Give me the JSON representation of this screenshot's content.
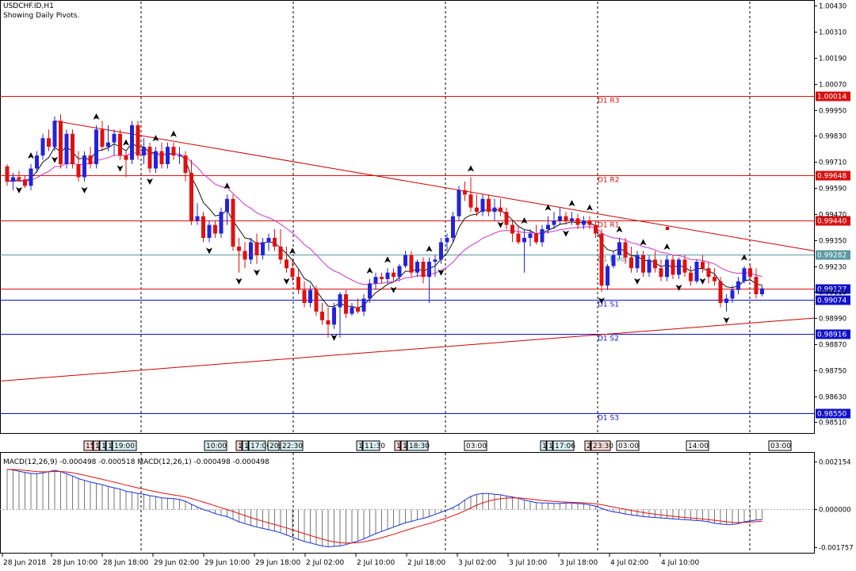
{
  "header": {
    "symbol": "USDCHF.ID,H1",
    "note": "Showing Daily Pivots."
  },
  "colors": {
    "bull": "#2323d9",
    "bear": "#e01010",
    "ema_fast": "#101010",
    "ema_slow": "#cc33cc",
    "pivot_red": "#d81010",
    "pivot_blue": "#1010cc",
    "pivot_teal": "#5a9aa0",
    "trendline": "#cc0000",
    "macd_line": "#1830d8",
    "signal_line": "#e01010",
    "grid": "#000000",
    "marker_red": "#ffdddd",
    "marker_blue": "#ddf2f4"
  },
  "chart_data": [
    {
      "type": "candlestick",
      "title": "USDCHF.ID,H1",
      "subtitle": "Showing Daily Pivots.",
      "ylim": [
        0.9846,
        1.0045
      ],
      "y_ticks": [
        "1.00430",
        "1.00310",
        "1.00190",
        "1.00070",
        "0.99950",
        "0.99830",
        "0.99710",
        "0.99590",
        "0.99470",
        "0.99350",
        "0.99230",
        "0.99110",
        "0.98990",
        "0.98870",
        "0.98750",
        "0.98630",
        "0.98510"
      ],
      "x_labels": [
        "28 Jun 2018",
        "28 Jun 10:00",
        "28 Jun 18:00",
        "29 Jun 02:00",
        "29 Jun 10:00",
        "29 Jun 18:00",
        "2 Jul 02:00",
        "2 Jul 10:00",
        "2 Jul 18:00",
        "3 Jul 02:00",
        "3 Jul 10:00",
        "3 Jul 18:00",
        "4 Jul 02:00",
        "4 Jul 10:00"
      ],
      "session_separators_date": [
        "28 Jun 20:00",
        "29 Jun 20:00",
        "2 Jul 20:00",
        "3 Jul 20:00",
        "4 Jul 20:00"
      ],
      "pivots": [
        {
          "label": "D1 R3",
          "value": 1.00014,
          "price_label": "1.00014",
          "color": "pivot_red"
        },
        {
          "label": "D1 R2",
          "value": 0.99648,
          "price_label": "0.99648",
          "color": "pivot_red"
        },
        {
          "label": "D1 R1",
          "value": 0.9944,
          "price_label": "0.99440",
          "color": "pivot_red"
        },
        {
          "label": "D1 Pivot",
          "value": 0.99282,
          "price_label": "0.99282",
          "color": "pivot_teal"
        },
        {
          "label": "D1 S1",
          "value": 0.99074,
          "price_label": "0.99074",
          "color": "pivot_blue"
        },
        {
          "label": "D1 S2",
          "value": 0.98916,
          "price_label": "0.98916",
          "color": "pivot_blue"
        },
        {
          "label": "D1 S3",
          "value": 0.9855,
          "price_label": "0.98550",
          "color": "pivot_blue"
        }
      ],
      "current_price": {
        "value": 0.99127,
        "label": "0.99127"
      },
      "trendlines": [
        {
          "name": "resistance",
          "from": {
            "bar": 8,
            "price": 0.999
          },
          "to": {
            "bar": 144,
            "price": 0.993
          }
        },
        {
          "name": "support",
          "from": {
            "bar": -1,
            "price": 0.987
          },
          "to": {
            "bar": 144,
            "price": 0.9899
          }
        }
      ],
      "time_markers": [
        {
          "label": "15:",
          "style": "red"
        },
        {
          "label": "1",
          "style": "red"
        },
        {
          "label": "1",
          "style": "blue"
        },
        {
          "label": "1",
          "style": "blue"
        },
        {
          "label": "19:00",
          "style": "blue"
        },
        {
          "label": "10:00",
          "style": "blue"
        },
        {
          "label": "1",
          "style": "red"
        },
        {
          "label": "1",
          "style": "blue"
        },
        {
          "label": "17:00",
          "style": "blue"
        },
        {
          "label": "20:",
          "style": "blue"
        },
        {
          "label": "22:30",
          "style": "blue"
        },
        {
          "label": "1",
          "style": "blue"
        },
        {
          "label": "11:30",
          "style": "blue"
        },
        {
          "label": "1",
          "style": "red"
        },
        {
          "label": "1",
          "style": "red"
        },
        {
          "label": "18:30",
          "style": "blue"
        },
        {
          "label": "03:00",
          "style": "plain"
        },
        {
          "label": "1",
          "style": "blue"
        },
        {
          "label": "1",
          "style": "blue"
        },
        {
          "label": "17:06",
          "style": "blue"
        },
        {
          "label": "2",
          "style": "red"
        },
        {
          "label": "23:30",
          "style": "red"
        },
        {
          "label": "03:00",
          "style": "plain"
        },
        {
          "label": "14:00",
          "style": "plain"
        },
        {
          "label": "03:00",
          "style": "plain"
        }
      ],
      "candles": [
        [
          0.9969,
          0.997,
          0.996,
          0.9962
        ],
        [
          0.9962,
          0.9966,
          0.9958,
          0.9964
        ],
        [
          0.9964,
          0.9967,
          0.9962,
          0.9963
        ],
        [
          0.9963,
          0.9965,
          0.9959,
          0.996
        ],
        [
          0.996,
          0.997,
          0.9958,
          0.9968
        ],
        [
          0.9968,
          0.9976,
          0.9966,
          0.9974
        ],
        [
          0.9974,
          0.9984,
          0.9972,
          0.9982
        ],
        [
          0.9982,
          0.9986,
          0.9976,
          0.9978
        ],
        [
          0.9978,
          0.9992,
          0.9976,
          0.999
        ],
        [
          0.999,
          0.9993,
          0.9968,
          0.997
        ],
        [
          0.997,
          0.9986,
          0.9968,
          0.9984
        ],
        [
          0.9984,
          0.9986,
          0.9968,
          0.997
        ],
        [
          0.997,
          0.9976,
          0.9962,
          0.9964
        ],
        [
          0.9964,
          0.9976,
          0.9962,
          0.9974
        ],
        [
          0.9974,
          0.9978,
          0.9968,
          0.997
        ],
        [
          0.997,
          0.9988,
          0.9968,
          0.9986
        ],
        [
          0.9986,
          0.999,
          0.9976,
          0.9978
        ],
        [
          0.9978,
          0.9988,
          0.9976,
          0.998
        ],
        [
          0.998,
          0.9986,
          0.9974,
          0.9984
        ],
        [
          0.9984,
          0.9986,
          0.9972,
          0.9974
        ],
        [
          0.9974,
          0.9976,
          0.9964,
          0.9972
        ],
        [
          0.9972,
          0.999,
          0.997,
          0.9988
        ],
        [
          0.9988,
          0.999,
          0.9972,
          0.9974
        ],
        [
          0.9974,
          0.9982,
          0.997,
          0.9978
        ],
        [
          0.9978,
          0.998,
          0.9966,
          0.9968
        ],
        [
          0.9968,
          0.9978,
          0.9966,
          0.9976
        ],
        [
          0.9976,
          0.998,
          0.9968,
          0.997
        ],
        [
          0.997,
          0.998,
          0.9968,
          0.9978
        ],
        [
          0.9978,
          0.998,
          0.9972,
          0.9974
        ],
        [
          0.9974,
          0.9978,
          0.997,
          0.9974
        ],
        [
          0.9974,
          0.9976,
          0.9962,
          0.9966
        ],
        [
          0.9966,
          0.9972,
          0.9942,
          0.9944
        ],
        [
          0.9944,
          0.9952,
          0.9942,
          0.9946
        ],
        [
          0.9946,
          0.9948,
          0.9934,
          0.9936
        ],
        [
          0.9936,
          0.9944,
          0.9934,
          0.9942
        ],
        [
          0.9942,
          0.9944,
          0.9936,
          0.9938
        ],
        [
          0.9938,
          0.995,
          0.9936,
          0.9948
        ],
        [
          0.9948,
          0.9956,
          0.9942,
          0.9954
        ],
        [
          0.9954,
          0.9956,
          0.993,
          0.9932
        ],
        [
          0.9932,
          0.9936,
          0.992,
          0.993
        ],
        [
          0.993,
          0.9934,
          0.9922,
          0.9926
        ],
        [
          0.9926,
          0.9936,
          0.9924,
          0.9934
        ],
        [
          0.9934,
          0.9938,
          0.9924,
          0.9928
        ],
        [
          0.9928,
          0.9936,
          0.9926,
          0.9934
        ],
        [
          0.9934,
          0.9938,
          0.993,
          0.9936
        ],
        [
          0.9936,
          0.994,
          0.993,
          0.9932
        ],
        [
          0.9932,
          0.994,
          0.9924,
          0.9926
        ],
        [
          0.9926,
          0.9932,
          0.992,
          0.9922
        ],
        [
          0.9922,
          0.9926,
          0.9916,
          0.9918
        ],
        [
          0.9918,
          0.9922,
          0.991,
          0.9912
        ],
        [
          0.9912,
          0.9916,
          0.9904,
          0.9906
        ],
        [
          0.9906,
          0.9914,
          0.9904,
          0.9912
        ],
        [
          0.9912,
          0.9914,
          0.99,
          0.9902
        ],
        [
          0.9902,
          0.9906,
          0.9896,
          0.9898
        ],
        [
          0.9898,
          0.9904,
          0.989,
          0.9896
        ],
        [
          0.9896,
          0.9906,
          0.9894,
          0.9904
        ],
        [
          0.9904,
          0.9911,
          0.989,
          0.991
        ],
        [
          0.991,
          0.9912,
          0.9899,
          0.9901
        ],
        [
          0.9901,
          0.9906,
          0.99,
          0.9904
        ],
        [
          0.9904,
          0.9908,
          0.9901,
          0.9902
        ],
        [
          0.9902,
          0.991,
          0.99,
          0.9908
        ],
        [
          0.9908,
          0.9917,
          0.9906,
          0.9915
        ],
        [
          0.9915,
          0.992,
          0.9912,
          0.9918
        ],
        [
          0.9918,
          0.992,
          0.9915,
          0.9917
        ],
        [
          0.9917,
          0.9922,
          0.9915,
          0.992
        ],
        [
          0.992,
          0.9922,
          0.9916,
          0.9918
        ],
        [
          0.9918,
          0.9924,
          0.9916,
          0.9923
        ],
        [
          0.9923,
          0.993,
          0.9922,
          0.9928
        ],
        [
          0.9928,
          0.993,
          0.9918,
          0.992
        ],
        [
          0.992,
          0.9926,
          0.9918,
          0.9925
        ],
        [
          0.9925,
          0.9927,
          0.9915,
          0.9918
        ],
        [
          0.9918,
          0.9927,
          0.9906,
          0.9925
        ],
        [
          0.9925,
          0.9928,
          0.9918,
          0.9926
        ],
        [
          0.9926,
          0.9936,
          0.9924,
          0.9934
        ],
        [
          0.9934,
          0.9938,
          0.993,
          0.9936
        ],
        [
          0.9936,
          0.9948,
          0.9934,
          0.9946
        ],
        [
          0.9946,
          0.996,
          0.9944,
          0.9958
        ],
        [
          0.9958,
          0.9962,
          0.9953,
          0.9956
        ],
        [
          0.9956,
          0.9964,
          0.9948,
          0.995
        ],
        [
          0.995,
          0.9956,
          0.9946,
          0.9948
        ],
        [
          0.9948,
          0.9956,
          0.9946,
          0.9954
        ],
        [
          0.9954,
          0.9956,
          0.9946,
          0.9948
        ],
        [
          0.9948,
          0.9954,
          0.9944,
          0.995
        ],
        [
          0.995,
          0.9954,
          0.9946,
          0.9948
        ],
        [
          0.9948,
          0.995,
          0.994,
          0.9942
        ],
        [
          0.9942,
          0.9944,
          0.9934,
          0.9938
        ],
        [
          0.9938,
          0.9942,
          0.9933,
          0.9934
        ],
        [
          0.9934,
          0.994,
          0.992,
          0.9936
        ],
        [
          0.9936,
          0.994,
          0.9932,
          0.9938
        ],
        [
          0.9938,
          0.9942,
          0.9933,
          0.9934
        ],
        [
          0.9934,
          0.9942,
          0.9932,
          0.994
        ],
        [
          0.994,
          0.9946,
          0.9938,
          0.9942
        ],
        [
          0.9942,
          0.9948,
          0.994,
          0.9944
        ],
        [
          0.9944,
          0.995,
          0.9942,
          0.9946
        ],
        [
          0.9946,
          0.9948,
          0.9942,
          0.9944
        ],
        [
          0.9944,
          0.9948,
          0.9942,
          0.9945
        ],
        [
          0.9945,
          0.9947,
          0.994,
          0.9942
        ],
        [
          0.9942,
          0.9946,
          0.994,
          0.9944
        ],
        [
          0.9944,
          0.9946,
          0.994,
          0.9942
        ],
        [
          0.9942,
          0.9944,
          0.9936,
          0.9938
        ],
        [
          0.9938,
          0.994,
          0.9911,
          0.9914
        ],
        [
          0.9914,
          0.9924,
          0.9912,
          0.9923
        ],
        [
          0.9923,
          0.993,
          0.9922,
          0.9928
        ],
        [
          0.9928,
          0.9936,
          0.9926,
          0.9934
        ],
        [
          0.9934,
          0.9936,
          0.9924,
          0.9927
        ],
        [
          0.9927,
          0.9932,
          0.992,
          0.9922
        ],
        [
          0.9922,
          0.993,
          0.992,
          0.9928
        ],
        [
          0.9928,
          0.993,
          0.9918,
          0.992
        ],
        [
          0.992,
          0.9928,
          0.9918,
          0.9926
        ],
        [
          0.9926,
          0.993,
          0.992,
          0.9922
        ],
        [
          0.9922,
          0.9926,
          0.9916,
          0.9918
        ],
        [
          0.9918,
          0.9928,
          0.9916,
          0.9926
        ],
        [
          0.9926,
          0.9928,
          0.9917,
          0.9919
        ],
        [
          0.9919,
          0.9927,
          0.9917,
          0.9926
        ],
        [
          0.9926,
          0.9928,
          0.9918,
          0.992
        ],
        [
          0.992,
          0.9923,
          0.9914,
          0.9916
        ],
        [
          0.9916,
          0.9926,
          0.9915,
          0.9925
        ],
        [
          0.9925,
          0.9928,
          0.992,
          0.9922
        ],
        [
          0.9922,
          0.9925,
          0.9915,
          0.9918
        ],
        [
          0.9918,
          0.9922,
          0.9914,
          0.9916
        ],
        [
          0.9916,
          0.9918,
          0.9904,
          0.9906
        ],
        [
          0.9906,
          0.991,
          0.9902,
          0.9908
        ],
        [
          0.9908,
          0.9914,
          0.9906,
          0.9912
        ],
        [
          0.9912,
          0.9918,
          0.991,
          0.9916
        ],
        [
          0.9916,
          0.9923,
          0.9915,
          0.9922
        ],
        [
          0.9922,
          0.9924,
          0.9916,
          0.9918
        ],
        [
          0.9918,
          0.9922,
          0.9908,
          0.991
        ],
        [
          0.991,
          0.9914,
          0.9909,
          0.99127
        ]
      ],
      "fractals": {
        "up": [
          4,
          15,
          20,
          25,
          28,
          37,
          48,
          61,
          64,
          71,
          78,
          87,
          91,
          95,
          98,
          103,
          107,
          111,
          124
        ],
        "down": [
          2,
          8,
          13,
          19,
          24,
          34,
          39,
          42,
          47,
          55,
          65,
          73,
          83,
          94,
          100,
          106,
          113,
          117,
          121
        ]
      }
    },
    {
      "type": "macd",
      "title": "MACD(12,26,9) -0.000498 -0.000518 MACD(12,26,1) -0.000498 -0.000498",
      "ylim": [
        -0.00205,
        0.00245
      ],
      "y_ticks": [
        "0.002154",
        "0.000000",
        "-0.001757"
      ],
      "histogram": [
        0.0018,
        0.00178,
        0.00172,
        0.00166,
        0.00162,
        0.0016,
        0.00164,
        0.0017,
        0.00176,
        0.0017,
        0.0016,
        0.0015,
        0.00138,
        0.0013,
        0.00122,
        0.00116,
        0.0011,
        0.00102,
        0.00096,
        0.0009,
        0.0008,
        0.00076,
        0.0007,
        0.00066,
        0.0006,
        0.00056,
        0.0005,
        0.00048,
        0.00046,
        0.00042,
        0.00034,
        0.0002,
        8e-05,
        -4e-05,
        -0.00012,
        -0.00022,
        -0.0003,
        -0.00036,
        -0.00048,
        -0.0006,
        -0.00068,
        -0.00076,
        -0.00084,
        -0.0009,
        -0.00096,
        -0.00102,
        -0.0011,
        -0.0012,
        -0.0013,
        -0.0014,
        -0.0015,
        -0.00156,
        -0.00164,
        -0.0017,
        -0.00174,
        -0.00172,
        -0.0017,
        -0.00164,
        -0.00156,
        -0.00148,
        -0.00138,
        -0.00126,
        -0.00114,
        -0.00104,
        -0.00094,
        -0.00084,
        -0.00074,
        -0.00064,
        -0.00058,
        -0.0005,
        -0.00044,
        -0.00036,
        -0.00026,
        -0.00016,
        -6e-05,
        6e-05,
        0.0002,
        0.0004,
        0.00056,
        0.00066,
        0.0007,
        0.0007,
        0.00066,
        0.00064,
        0.00058,
        0.00054,
        0.00048,
        0.0004,
        0.00034,
        0.00028,
        0.00026,
        0.00026,
        0.00024,
        0.00024,
        0.00026,
        0.00026,
        0.00024,
        0.00022,
        0.00018,
        0.00012,
        2e-05,
        -8e-05,
        -0.00014,
        -0.00018,
        -0.00024,
        -0.00028,
        -0.00032,
        -0.00036,
        -0.00038,
        -0.0004,
        -0.00042,
        -0.00044,
        -0.00046,
        -0.00048,
        -0.0005,
        -0.00052,
        -0.00054,
        -0.00056,
        -0.0006,
        -0.00066,
        -0.0007,
        -0.00072,
        -0.00072,
        -0.00068,
        -0.0006,
        -0.00056,
        -0.00052,
        -0.0005
      ]
    }
  ]
}
